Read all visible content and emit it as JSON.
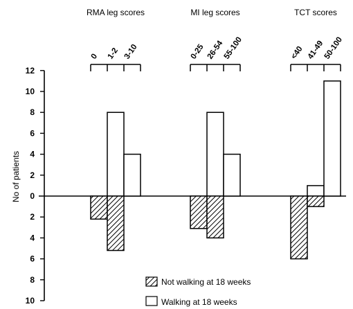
{
  "chart_data": {
    "type": "bar",
    "ylabel": "No of patients",
    "y_ticks_up": [
      "2",
      "4",
      "6",
      "8",
      "10",
      "12"
    ],
    "y_ticks_down": [
      "2",
      "4",
      "6",
      "8",
      "10"
    ],
    "ylim": [
      -10,
      12
    ],
    "negative_direction": "Not walking at 18 weeks counts drawn below zero",
    "groups": [
      {
        "title": "RMA leg scores",
        "categories": [
          "0",
          "1-2",
          "3-10"
        ],
        "walking": [
          0,
          8,
          4
        ],
        "not_walking": [
          2.2,
          5.2,
          0
        ]
      },
      {
        "title": "MI leg scores",
        "categories": [
          "0-25",
          "26-54",
          "55-100"
        ],
        "walking": [
          0,
          8,
          4
        ],
        "not_walking": [
          3.1,
          4.0,
          0
        ]
      },
      {
        "title": "TCT scores",
        "categories": [
          "<40",
          "41-49",
          "50-100"
        ],
        "walking": [
          0,
          1,
          11
        ],
        "not_walking": [
          6,
          1,
          0
        ]
      }
    ],
    "legend": [
      {
        "label": "Not walking at 18 weeks",
        "pattern": "hatched"
      },
      {
        "label": "Walking at 18 weeks",
        "pattern": "open"
      }
    ],
    "legend_position": "bottom-right"
  }
}
